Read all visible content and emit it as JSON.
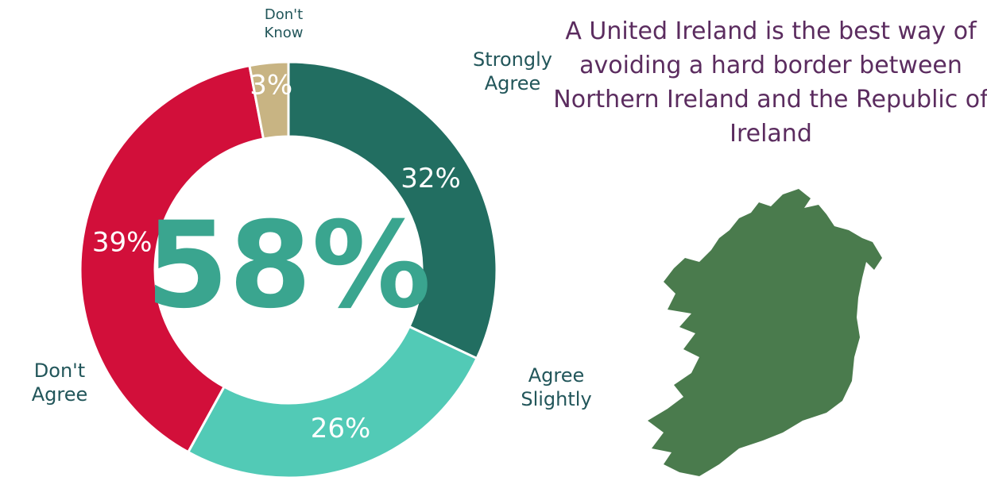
{
  "chart_data": {
    "type": "donut",
    "title": "A United Ireland is the best way of avoiding a hard border between Northern Ireland and the Republic of Ireland",
    "center_label": "58%",
    "categories": [
      "Strongly Agree",
      "Agree Slightly",
      "Don't Agree",
      "Don't Know"
    ],
    "values": [
      32,
      26,
      39,
      3
    ],
    "value_labels": [
      "32%",
      "26%",
      "39%",
      "3%"
    ],
    "colors": [
      "#226e61",
      "#52cab6",
      "#d20f3a",
      "#c8b483"
    ]
  }
}
